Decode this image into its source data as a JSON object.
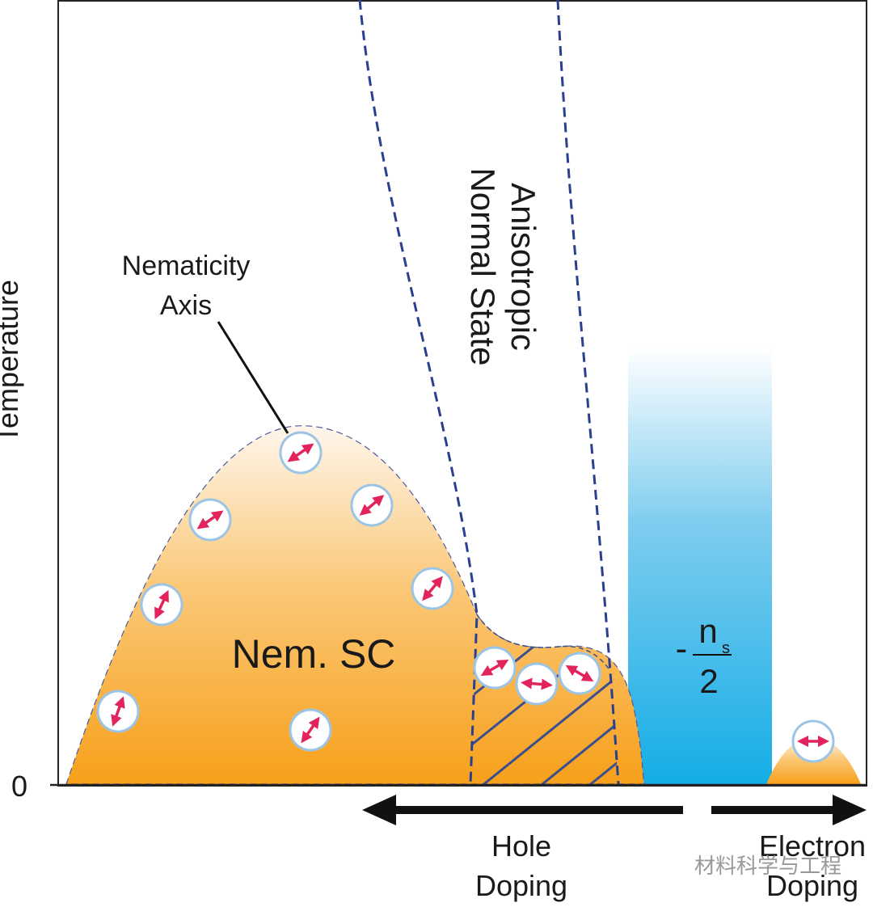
{
  "axis": {
    "y_label": "Temperature",
    "origin": "0"
  },
  "annotation": {
    "lines": [
      "Nematicity",
      "Axis"
    ]
  },
  "normal_state": {
    "lines": [
      "Anisotropic",
      "Normal State"
    ]
  },
  "phase": {
    "label": "Nem. SC"
  },
  "superfluid": {
    "minus": "-",
    "numerator": "n",
    "subscript": "s",
    "denominator": "2"
  },
  "doping": {
    "hole": [
      "Hole",
      "Doping"
    ],
    "electron": [
      "Electron",
      "Doping"
    ]
  },
  "watermark": "材料科学与工程"
}
